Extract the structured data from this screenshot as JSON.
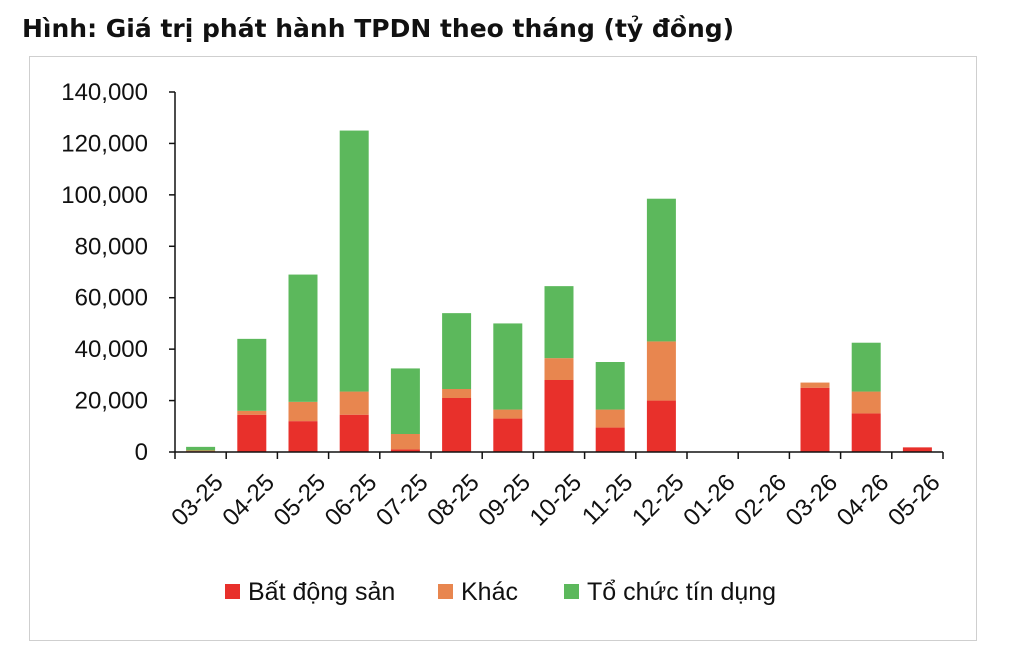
{
  "title": "Hình: Giá trị phát hành TPDN theo tháng (tỷ đồng)",
  "chart_data": {
    "type": "bar",
    "stacked": true,
    "categories": [
      "03-25",
      "04-25",
      "05-25",
      "06-25",
      "07-25",
      "08-25",
      "09-25",
      "10-25",
      "11-25",
      "12-25",
      "01-26",
      "02-26",
      "03-26",
      "04-26",
      "05-26"
    ],
    "series": [
      {
        "name": "Bất động sản",
        "color": "#e8302b",
        "values": [
          300,
          14500,
          12000,
          14500,
          1000,
          21000,
          13000,
          28000,
          9500,
          20000,
          0,
          0,
          25000,
          15000,
          1800
        ]
      },
      {
        "name": "Khác",
        "color": "#e8864f",
        "values": [
          300,
          1500,
          7500,
          9000,
          6000,
          3500,
          3500,
          8500,
          7000,
          23000,
          0,
          0,
          2000,
          8500,
          0
        ]
      },
      {
        "name": "Tổ chức tín dụng",
        "color": "#5cb85c",
        "values": [
          1400,
          28000,
          49500,
          101500,
          25500,
          29500,
          33500,
          28000,
          18500,
          55500,
          0,
          0,
          0,
          19000,
          0
        ]
      }
    ],
    "ylim": [
      0,
      140000
    ],
    "yticks": [
      0,
      20000,
      40000,
      60000,
      80000,
      100000,
      120000,
      140000
    ],
    "ytick_labels": [
      "0",
      "20,000",
      "40,000",
      "60,000",
      "80,000",
      "100,000",
      "120,000",
      "140,000"
    ],
    "grid": false,
    "legend_position": "bottom"
  }
}
